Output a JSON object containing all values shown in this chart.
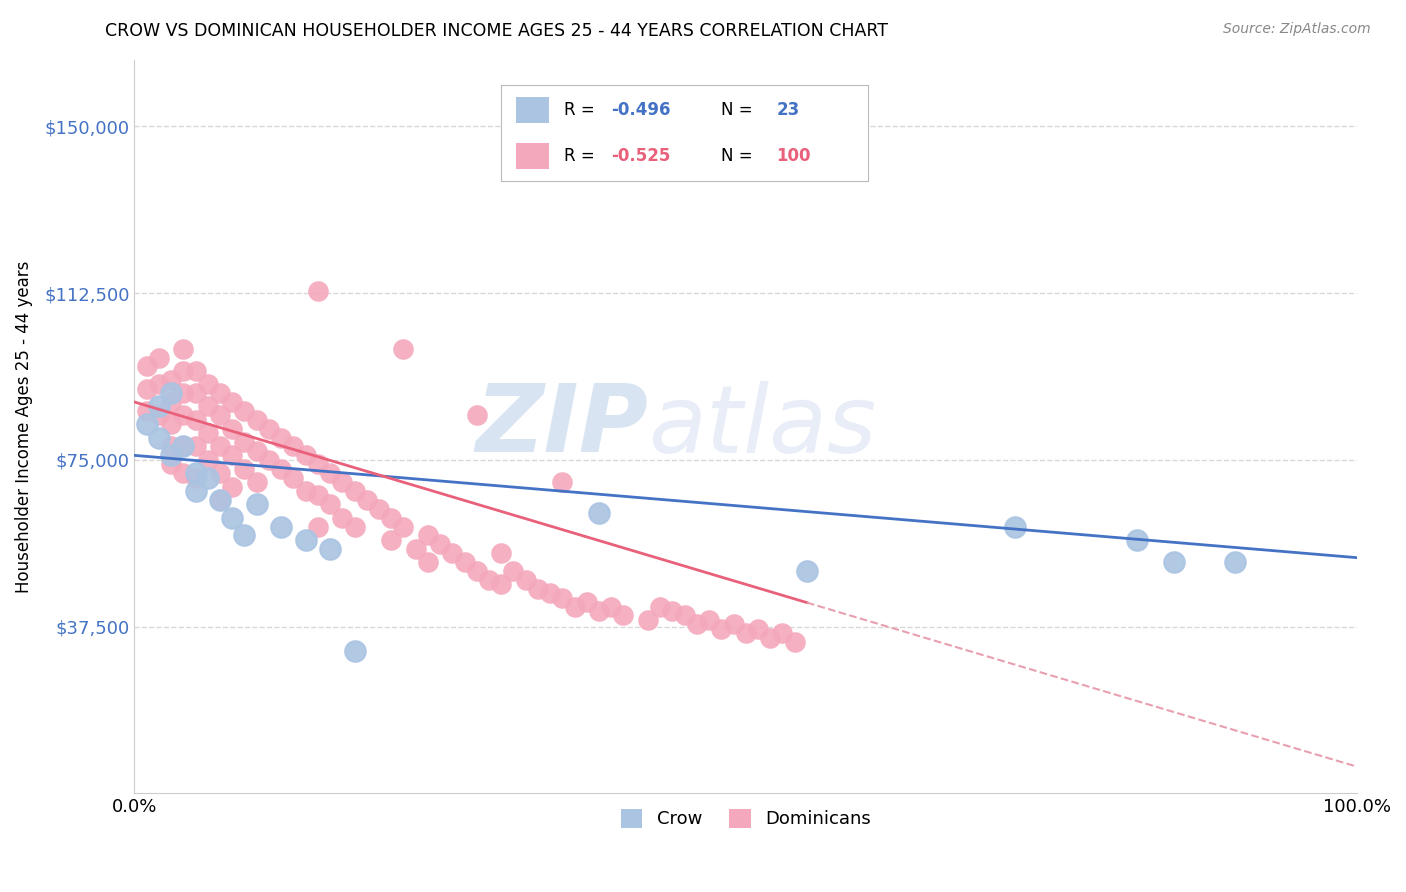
{
  "title": "CROW VS DOMINICAN HOUSEHOLDER INCOME AGES 25 - 44 YEARS CORRELATION CHART",
  "source": "Source: ZipAtlas.com",
  "ylabel": "Householder Income Ages 25 - 44 years",
  "xlim": [
    0.0,
    1.0
  ],
  "ylim": [
    0,
    165000
  ],
  "yticks": [
    37500,
    75000,
    112500,
    150000
  ],
  "ytick_labels": [
    "$37,500",
    "$75,000",
    "$112,500",
    "$150,000"
  ],
  "xtick_labels": [
    "0.0%",
    "100.0%"
  ],
  "crow_R": -0.496,
  "crow_N": 23,
  "dominican_R": -0.525,
  "dominican_N": 100,
  "crow_color": "#aac4e2",
  "dominican_color": "#f4a8bc",
  "crow_line_color": "#4472c4",
  "dominican_line_color": "#e8607a",
  "regression_extend_color": "#e8a0b0",
  "watermark_zip": "ZIP",
  "watermark_atlas": "atlas",
  "crow_x": [
    0.01,
    0.02,
    0.02,
    0.03,
    0.03,
    0.04,
    0.05,
    0.05,
    0.06,
    0.07,
    0.08,
    0.09,
    0.1,
    0.12,
    0.14,
    0.16,
    0.18,
    0.38,
    0.55,
    0.72,
    0.82,
    0.85,
    0.9
  ],
  "crow_y": [
    83000,
    87000,
    80000,
    90000,
    76000,
    78000,
    72000,
    68000,
    71000,
    66000,
    62000,
    58000,
    65000,
    60000,
    57000,
    55000,
    32000,
    63000,
    50000,
    60000,
    57000,
    52000,
    52000
  ],
  "dominican_x": [
    0.01,
    0.01,
    0.01,
    0.02,
    0.02,
    0.02,
    0.03,
    0.03,
    0.03,
    0.03,
    0.03,
    0.04,
    0.04,
    0.04,
    0.04,
    0.04,
    0.04,
    0.05,
    0.05,
    0.05,
    0.05,
    0.05,
    0.06,
    0.06,
    0.06,
    0.06,
    0.07,
    0.07,
    0.07,
    0.07,
    0.07,
    0.08,
    0.08,
    0.08,
    0.08,
    0.09,
    0.09,
    0.09,
    0.1,
    0.1,
    0.1,
    0.11,
    0.11,
    0.12,
    0.12,
    0.13,
    0.13,
    0.14,
    0.14,
    0.15,
    0.15,
    0.15,
    0.16,
    0.16,
    0.17,
    0.17,
    0.18,
    0.18,
    0.19,
    0.2,
    0.21,
    0.21,
    0.22,
    0.23,
    0.24,
    0.24,
    0.25,
    0.26,
    0.27,
    0.28,
    0.29,
    0.3,
    0.3,
    0.31,
    0.32,
    0.33,
    0.34,
    0.35,
    0.36,
    0.37,
    0.38,
    0.39,
    0.4,
    0.42,
    0.43,
    0.44,
    0.45,
    0.46,
    0.47,
    0.48,
    0.49,
    0.5,
    0.51,
    0.52,
    0.53,
    0.54,
    0.15,
    0.22,
    0.28,
    0.35
  ],
  "dominican_y": [
    96000,
    91000,
    86000,
    98000,
    92000,
    85000,
    93000,
    88000,
    83000,
    78000,
    74000,
    100000,
    95000,
    90000,
    85000,
    78000,
    72000,
    95000,
    90000,
    84000,
    78000,
    71000,
    92000,
    87000,
    81000,
    75000,
    90000,
    85000,
    78000,
    72000,
    66000,
    88000,
    82000,
    76000,
    69000,
    86000,
    79000,
    73000,
    84000,
    77000,
    70000,
    82000,
    75000,
    80000,
    73000,
    78000,
    71000,
    76000,
    68000,
    74000,
    67000,
    60000,
    72000,
    65000,
    70000,
    62000,
    68000,
    60000,
    66000,
    64000,
    62000,
    57000,
    60000,
    55000,
    58000,
    52000,
    56000,
    54000,
    52000,
    50000,
    48000,
    47000,
    54000,
    50000,
    48000,
    46000,
    45000,
    44000,
    42000,
    43000,
    41000,
    42000,
    40000,
    39000,
    42000,
    41000,
    40000,
    38000,
    39000,
    37000,
    38000,
    36000,
    37000,
    35000,
    36000,
    34000,
    113000,
    100000,
    85000,
    70000
  ],
  "background_color": "#ffffff",
  "grid_color": "#d8d8d8"
}
